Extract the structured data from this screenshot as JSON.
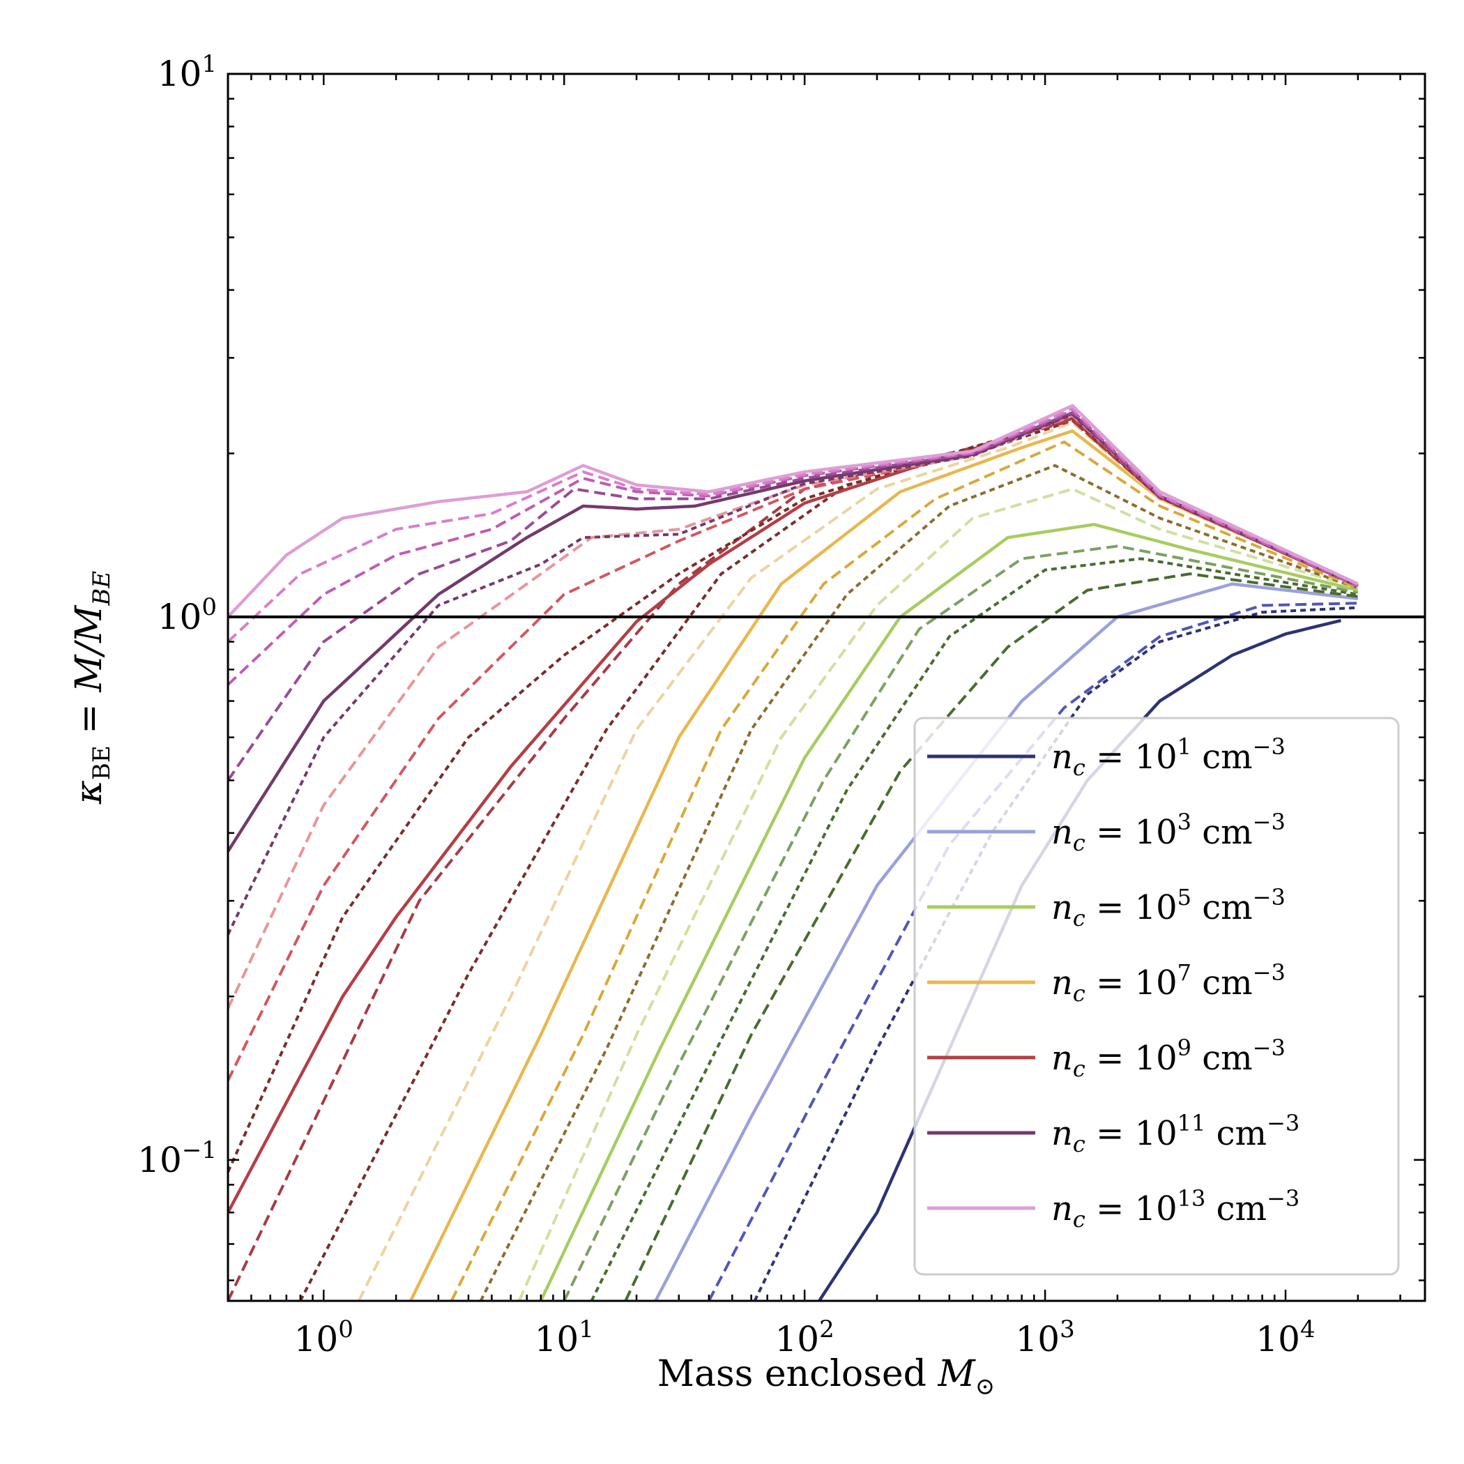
{
  "chart_data": {
    "type": "line",
    "title": "",
    "xscale": "log",
    "yscale": "log",
    "xlim": [
      0.4,
      38000
    ],
    "ylim": [
      0.055,
      10
    ],
    "xlabel": {
      "text": "Mass enclosed",
      "symbol": "M",
      "subscript": "⊙"
    },
    "ylabel": {
      "kappa": "κ",
      "kappa_sub": "BE",
      "rhs": " = M/M",
      "rhs_sub": "BE"
    },
    "x_ticks": [
      {
        "value": 1,
        "base": "10",
        "exp": "0"
      },
      {
        "value": 10,
        "base": "10",
        "exp": "1"
      },
      {
        "value": 100,
        "base": "10",
        "exp": "2"
      },
      {
        "value": 1000,
        "base": "10",
        "exp": "3"
      },
      {
        "value": 10000,
        "base": "10",
        "exp": "4"
      }
    ],
    "y_ticks": [
      {
        "value": 0.1,
        "base": "10",
        "exp": "−1"
      },
      {
        "value": 1,
        "base": "10",
        "exp": "0"
      },
      {
        "value": 10,
        "base": "10",
        "exp": "1"
      }
    ],
    "reference_line": {
      "y": 1.0,
      "color": "#000000"
    },
    "legend": {
      "position": "lower-right",
      "entries": [
        {
          "symbol": "n",
          "sub": "c",
          "eq": " = 10",
          "exp": "1",
          "unit": " cm",
          "unit_exp": "−3",
          "color": "#2e3374"
        },
        {
          "symbol": "n",
          "sub": "c",
          "eq": " = 10",
          "exp": "3",
          "unit": " cm",
          "unit_exp": "−3",
          "color": "#9ba0dc"
        },
        {
          "symbol": "n",
          "sub": "c",
          "eq": " = 10",
          "exp": "5",
          "unit": " cm",
          "unit_exp": "−3",
          "color": "#a8cc5f"
        },
        {
          "symbol": "n",
          "sub": "c",
          "eq": " = 10",
          "exp": "7",
          "unit": " cm",
          "unit_exp": "−3",
          "color": "#e8b74e"
        },
        {
          "symbol": "n",
          "sub": "c",
          "eq": " = 10",
          "exp": "9",
          "unit": " cm",
          "unit_exp": "−3",
          "color": "#b33f44"
        },
        {
          "symbol": "n",
          "sub": "c",
          "eq": " = 10",
          "exp": "11",
          "unit": " cm",
          "unit_exp": "−3",
          "color": "#743a6b"
        },
        {
          "symbol": "n",
          "sub": "c",
          "eq": " = 10",
          "exp": "13",
          "unit": " cm",
          "unit_exp": "−3",
          "color": "#de9ed6"
        }
      ]
    },
    "series": [
      {
        "name": "n_c = 10^1 cm^-3",
        "style": "solid",
        "color": "#2e3374",
        "points": [
          [
            115,
            0.055
          ],
          [
            200,
            0.08
          ],
          [
            400,
            0.16
          ],
          [
            800,
            0.32
          ],
          [
            1500,
            0.5
          ],
          [
            3000,
            0.7
          ],
          [
            6000,
            0.85
          ],
          [
            10000,
            0.93
          ],
          [
            17000,
            0.985
          ]
        ]
      },
      {
        "name": "n_c = 10^2 cm^-3",
        "style": "dotted",
        "color": "#2e3374",
        "points": [
          [
            62,
            0.055
          ],
          [
            200,
            0.16
          ],
          [
            600,
            0.4
          ],
          [
            1500,
            0.72
          ],
          [
            3000,
            0.9
          ],
          [
            8000,
            1.02
          ],
          [
            20000,
            1.04
          ]
        ]
      },
      {
        "name": "n_c = 10^2.5 cm^-3",
        "style": "dashed",
        "color": "#5255b8",
        "points": [
          [
            40,
            0.055
          ],
          [
            120,
            0.14
          ],
          [
            400,
            0.38
          ],
          [
            1200,
            0.68
          ],
          [
            3000,
            0.92
          ],
          [
            8000,
            1.05
          ],
          [
            20000,
            1.06
          ]
        ]
      },
      {
        "name": "n_c = 10^3 cm^-3",
        "style": "solid",
        "color": "#9ba0dc",
        "points": [
          [
            24,
            0.055
          ],
          [
            60,
            0.12
          ],
          [
            200,
            0.32
          ],
          [
            800,
            0.7
          ],
          [
            2000,
            1.0
          ],
          [
            6000,
            1.15
          ],
          [
            20000,
            1.08
          ]
        ]
      },
      {
        "name": "n_c = 10^3.5 cm^-3",
        "style": "dashed",
        "color": "#4a6b2e",
        "points": [
          [
            18,
            0.055
          ],
          [
            60,
            0.17
          ],
          [
            250,
            0.52
          ],
          [
            700,
            0.88
          ],
          [
            1500,
            1.12
          ],
          [
            4000,
            1.2
          ],
          [
            20000,
            1.09
          ]
        ]
      },
      {
        "name": "n_c = 10^4 cm^-3",
        "style": "dotted",
        "color": "#4a6b2e",
        "points": [
          [
            13,
            0.055
          ],
          [
            40,
            0.15
          ],
          [
            150,
            0.48
          ],
          [
            400,
            0.92
          ],
          [
            1000,
            1.22
          ],
          [
            2500,
            1.28
          ],
          [
            20000,
            1.1
          ]
        ]
      },
      {
        "name": "n_c = 10^4.5 cm^-3",
        "style": "dashed",
        "color": "#7da060",
        "points": [
          [
            10,
            0.055
          ],
          [
            30,
            0.15
          ],
          [
            120,
            0.5
          ],
          [
            300,
            0.95
          ],
          [
            800,
            1.28
          ],
          [
            2000,
            1.35
          ],
          [
            20000,
            1.11
          ]
        ]
      },
      {
        "name": "n_c = 10^5 cm^-3",
        "style": "solid",
        "color": "#a8cc5f",
        "points": [
          [
            8,
            0.055
          ],
          [
            25,
            0.16
          ],
          [
            100,
            0.55
          ],
          [
            250,
            1.0
          ],
          [
            700,
            1.4
          ],
          [
            1600,
            1.48
          ],
          [
            4000,
            1.33
          ],
          [
            20000,
            1.12
          ]
        ]
      },
      {
        "name": "n_c = 10^5.5 cm^-3",
        "style": "dashed",
        "color": "#d1df9e",
        "points": [
          [
            6.5,
            0.055
          ],
          [
            20,
            0.17
          ],
          [
            80,
            0.6
          ],
          [
            200,
            1.05
          ],
          [
            500,
            1.52
          ],
          [
            1300,
            1.72
          ],
          [
            3000,
            1.45
          ],
          [
            20000,
            1.13
          ]
        ]
      },
      {
        "name": "n_c = 10^6 cm^-3",
        "style": "dotted",
        "color": "#8b6d2e",
        "points": [
          [
            4.5,
            0.055
          ],
          [
            15,
            0.16
          ],
          [
            60,
            0.62
          ],
          [
            150,
            1.1
          ],
          [
            400,
            1.6
          ],
          [
            1100,
            1.9
          ],
          [
            3000,
            1.52
          ],
          [
            20000,
            1.13
          ]
        ]
      },
      {
        "name": "n_c = 10^6.5 cm^-3",
        "style": "dashed",
        "color": "#d9a83b",
        "points": [
          [
            3.4,
            0.055
          ],
          [
            12,
            0.17
          ],
          [
            45,
            0.62
          ],
          [
            120,
            1.15
          ],
          [
            350,
            1.65
          ],
          [
            1200,
            2.1
          ],
          [
            3000,
            1.6
          ],
          [
            20000,
            1.13
          ]
        ]
      },
      {
        "name": "n_c = 10^7 cm^-3",
        "style": "solid",
        "color": "#e8b74e",
        "points": [
          [
            2.3,
            0.055
          ],
          [
            8,
            0.17
          ],
          [
            30,
            0.6
          ],
          [
            80,
            1.15
          ],
          [
            250,
            1.7
          ],
          [
            800,
            2.05
          ],
          [
            1300,
            2.2
          ],
          [
            3000,
            1.65
          ],
          [
            20000,
            1.14
          ]
        ]
      },
      {
        "name": "n_c = 10^7.5 cm^-3",
        "style": "dashed",
        "color": "#ecd3a0",
        "points": [
          [
            1.4,
            0.055
          ],
          [
            6,
            0.2
          ],
          [
            20,
            0.62
          ],
          [
            60,
            1.18
          ],
          [
            200,
            1.72
          ],
          [
            700,
            2.05
          ],
          [
            1300,
            2.28
          ],
          [
            3000,
            1.65
          ],
          [
            20000,
            1.14
          ]
        ]
      },
      {
        "name": "n_c = 10^8 cm^-3",
        "style": "dotted",
        "color": "#7a2c2c",
        "points": [
          [
            0.8,
            0.055
          ],
          [
            4,
            0.22
          ],
          [
            15,
            0.62
          ],
          [
            45,
            1.2
          ],
          [
            150,
            1.75
          ],
          [
            600,
            2.05
          ],
          [
            1300,
            2.3
          ],
          [
            3000,
            1.66
          ],
          [
            20000,
            1.14
          ]
        ]
      },
      {
        "name": "n_c = 10^8.5 cm^-3",
        "style": "dashed",
        "color": "#a83a45",
        "points": [
          [
            0.4,
            0.055
          ],
          [
            2.5,
            0.3
          ],
          [
            10,
            0.65
          ],
          [
            30,
            1.15
          ],
          [
            100,
            1.72
          ],
          [
            500,
            2.05
          ],
          [
            1300,
            2.3
          ],
          [
            3000,
            1.66
          ],
          [
            20000,
            1.14
          ]
        ]
      },
      {
        "name": "n_c = 10^9 cm^-3",
        "style": "solid",
        "color": "#b33f44",
        "points": [
          [
            0.4,
            0.08
          ],
          [
            1.2,
            0.2
          ],
          [
            2,
            0.28
          ],
          [
            6,
            0.53
          ],
          [
            20,
            0.98
          ],
          [
            40,
            1.25
          ],
          [
            100,
            1.62
          ],
          [
            300,
            1.9
          ],
          [
            1300,
            2.32
          ],
          [
            3000,
            1.66
          ],
          [
            20000,
            1.14
          ]
        ]
      },
      {
        "name": "n_c = 10^9.5 cm^-3",
        "style": "dotted",
        "color": "#7a2c2c",
        "points": [
          [
            0.4,
            0.095
          ],
          [
            1.2,
            0.28
          ],
          [
            4,
            0.6
          ],
          [
            10,
            0.85
          ],
          [
            30,
            1.2
          ],
          [
            100,
            1.65
          ],
          [
            300,
            1.92
          ],
          [
            1300,
            2.33
          ],
          [
            3000,
            1.66
          ],
          [
            20000,
            1.14
          ]
        ]
      },
      {
        "name": "n_c = 10^10 cm^-3",
        "style": "dashed",
        "color": "#d4565f",
        "points": [
          [
            0.4,
            0.14
          ],
          [
            1,
            0.32
          ],
          [
            3,
            0.65
          ],
          [
            10,
            1.1
          ],
          [
            30,
            1.38
          ],
          [
            100,
            1.72
          ],
          [
            400,
            1.95
          ],
          [
            1300,
            2.34
          ],
          [
            3000,
            1.67
          ],
          [
            20000,
            1.14
          ]
        ]
      },
      {
        "name": "n_c = 10^10.5 cm^-3",
        "style": "dashed",
        "color": "#e8959b",
        "points": [
          [
            0.4,
            0.19
          ],
          [
            1,
            0.45
          ],
          [
            3,
            0.88
          ],
          [
            8,
            1.2
          ],
          [
            13,
            1.4
          ],
          [
            30,
            1.45
          ],
          [
            100,
            1.75
          ],
          [
            500,
            1.98
          ],
          [
            1300,
            2.35
          ],
          [
            3000,
            1.67
          ],
          [
            20000,
            1.14
          ]
        ]
      },
      {
        "name": "n_c = 10^11 cm^-3 (dotted)",
        "style": "dotted",
        "color": "#743a6b",
        "points": [
          [
            0.4,
            0.26
          ],
          [
            1,
            0.6
          ],
          [
            3,
            1.05
          ],
          [
            8,
            1.25
          ],
          [
            12,
            1.4
          ],
          [
            30,
            1.42
          ],
          [
            100,
            1.76
          ],
          [
            500,
            1.98
          ],
          [
            1300,
            2.36
          ],
          [
            3000,
            1.67
          ],
          [
            20000,
            1.14
          ]
        ]
      },
      {
        "name": "n_c = 10^11 cm^-3",
        "style": "solid",
        "color": "#743a6b",
        "points": [
          [
            0.4,
            0.37
          ],
          [
            1,
            0.7
          ],
          [
            3,
            1.1
          ],
          [
            7,
            1.4
          ],
          [
            12,
            1.6
          ],
          [
            20,
            1.58
          ],
          [
            35,
            1.6
          ],
          [
            100,
            1.78
          ],
          [
            500,
            1.99
          ],
          [
            1300,
            2.37
          ],
          [
            3000,
            1.67
          ],
          [
            20000,
            1.14
          ]
        ]
      },
      {
        "name": "n_c = 10^11.5 cm^-3",
        "style": "dashed",
        "color": "#9a4a96",
        "points": [
          [
            0.4,
            0.5
          ],
          [
            1,
            0.9
          ],
          [
            2.5,
            1.2
          ],
          [
            6,
            1.38
          ],
          [
            11,
            1.72
          ],
          [
            20,
            1.65
          ],
          [
            40,
            1.65
          ],
          [
            100,
            1.8
          ],
          [
            500,
            2.0
          ],
          [
            1300,
            2.38
          ],
          [
            3000,
            1.67
          ],
          [
            20000,
            1.14
          ]
        ]
      },
      {
        "name": "n_c = 10^12 cm^-3",
        "style": "dashed",
        "color": "#c05bb5",
        "points": [
          [
            0.4,
            0.75
          ],
          [
            1,
            1.1
          ],
          [
            2,
            1.3
          ],
          [
            5,
            1.45
          ],
          [
            12,
            1.8
          ],
          [
            20,
            1.7
          ],
          [
            40,
            1.67
          ],
          [
            100,
            1.82
          ],
          [
            500,
            2.0
          ],
          [
            1300,
            2.4
          ],
          [
            3000,
            1.67
          ],
          [
            20000,
            1.14
          ]
        ]
      },
      {
        "name": "n_c = 10^12.5 cm^-3",
        "style": "dashed",
        "color": "#d77ecb",
        "points": [
          [
            0.4,
            0.9
          ],
          [
            0.8,
            1.2
          ],
          [
            2,
            1.45
          ],
          [
            5,
            1.55
          ],
          [
            12,
            1.85
          ],
          [
            20,
            1.72
          ],
          [
            40,
            1.68
          ],
          [
            100,
            1.83
          ],
          [
            500,
            2.01
          ],
          [
            1300,
            2.42
          ],
          [
            3000,
            1.68
          ],
          [
            20000,
            1.15
          ]
        ]
      },
      {
        "name": "n_c = 10^13 cm^-3",
        "style": "solid",
        "color": "#de9ed6",
        "points": [
          [
            0.4,
            1.0
          ],
          [
            0.7,
            1.3
          ],
          [
            1.2,
            1.52
          ],
          [
            3,
            1.63
          ],
          [
            7,
            1.7
          ],
          [
            12,
            1.9
          ],
          [
            20,
            1.75
          ],
          [
            40,
            1.7
          ],
          [
            100,
            1.85
          ],
          [
            500,
            2.02
          ],
          [
            1300,
            2.45
          ],
          [
            3000,
            1.7
          ],
          [
            20000,
            1.15
          ]
        ]
      }
    ]
  }
}
